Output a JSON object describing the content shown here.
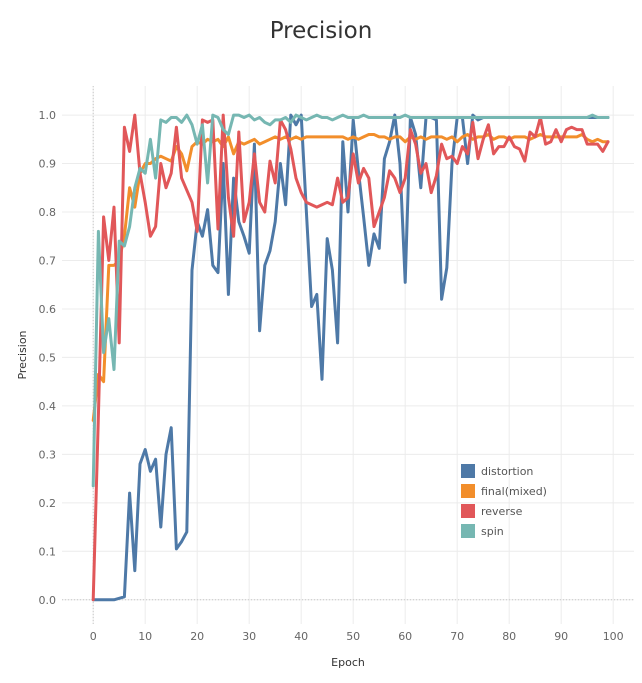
{
  "chart_data": {
    "type": "line",
    "title": "Precision",
    "xlabel": "Epoch",
    "ylabel": "Precision",
    "xlim": [
      -6,
      104
    ],
    "ylim": [
      -0.05,
      1.06
    ],
    "xticks": [
      0,
      10,
      20,
      30,
      40,
      50,
      60,
      70,
      80,
      90,
      100
    ],
    "yticks": [
      0.0,
      0.1,
      0.2,
      0.3,
      0.4,
      0.5,
      0.6,
      0.7,
      0.8,
      0.9,
      1.0
    ],
    "ytick_labels": [
      "0.0",
      "0.1",
      "0.2",
      "0.3",
      "0.4",
      "0.5",
      "0.6",
      "0.7",
      "0.8",
      "0.9",
      "1.0"
    ],
    "grid": true,
    "legend_position": "bottom-right",
    "series": [
      {
        "name": "distortion",
        "color": "#4e79a7",
        "values": [
          0.0,
          0.0,
          0.0,
          0.0,
          0.0,
          0.003,
          0.006,
          0.22,
          0.06,
          0.28,
          0.31,
          0.265,
          0.29,
          0.15,
          0.3,
          0.355,
          0.105,
          0.12,
          0.14,
          0.68,
          0.78,
          0.75,
          0.805,
          0.69,
          0.675,
          0.9,
          0.63,
          0.87,
          0.78,
          0.75,
          0.715,
          0.94,
          0.555,
          0.69,
          0.72,
          0.78,
          0.9,
          0.815,
          1.0,
          0.98,
          1.0,
          0.8,
          0.605,
          0.63,
          0.455,
          0.745,
          0.68,
          0.53,
          0.945,
          0.8,
          0.99,
          0.885,
          0.79,
          0.69,
          0.755,
          0.725,
          0.91,
          0.945,
          1.0,
          0.9,
          0.655,
          0.995,
          0.96,
          0.85,
          0.995,
          0.995,
          0.99,
          0.62,
          0.685,
          0.9,
          0.995,
          0.995,
          0.9,
          1.0,
          0.99,
          0.995,
          0.995,
          0.995,
          0.995,
          0.995,
          0.995,
          0.995,
          0.995,
          0.995,
          0.995,
          0.995,
          0.995,
          0.995,
          0.995,
          0.995,
          0.995,
          0.995,
          0.995,
          0.995,
          0.995,
          0.995,
          0.995,
          0.995,
          0.995,
          0.995
        ]
      },
      {
        "name": "final(mixed)",
        "color": "#f28e2b",
        "values": [
          0.37,
          0.465,
          0.45,
          0.69,
          0.69,
          0.7,
          0.75,
          0.85,
          0.81,
          0.88,
          0.9,
          0.9,
          0.91,
          0.915,
          0.91,
          0.905,
          0.935,
          0.92,
          0.885,
          0.935,
          0.945,
          0.94,
          0.95,
          0.945,
          0.95,
          0.935,
          0.955,
          0.92,
          0.945,
          0.94,
          0.945,
          0.95,
          0.94,
          0.945,
          0.95,
          0.955,
          0.95,
          0.955,
          0.95,
          0.955,
          0.95,
          0.955,
          0.955,
          0.955,
          0.955,
          0.955,
          0.955,
          0.955,
          0.955,
          0.95,
          0.955,
          0.95,
          0.955,
          0.96,
          0.96,
          0.955,
          0.955,
          0.95,
          0.955,
          0.955,
          0.945,
          0.955,
          0.95,
          0.955,
          0.95,
          0.955,
          0.955,
          0.955,
          0.95,
          0.955,
          0.945,
          0.955,
          0.96,
          0.95,
          0.955,
          0.955,
          0.96,
          0.95,
          0.955,
          0.955,
          0.95,
          0.955,
          0.955,
          0.955,
          0.95,
          0.955,
          0.96,
          0.955,
          0.955,
          0.955,
          0.955,
          0.955,
          0.955,
          0.955,
          0.96,
          0.95,
          0.945,
          0.95,
          0.945,
          0.945
        ]
      },
      {
        "name": "reverse",
        "color": "#e15759",
        "values": [
          0.0,
          0.38,
          0.79,
          0.7,
          0.81,
          0.53,
          0.975,
          0.925,
          1.0,
          0.88,
          0.82,
          0.75,
          0.77,
          0.9,
          0.85,
          0.88,
          0.975,
          0.87,
          0.845,
          0.82,
          0.76,
          0.99,
          0.985,
          0.99,
          0.765,
          1.0,
          0.83,
          0.75,
          0.965,
          0.78,
          0.82,
          0.92,
          0.82,
          0.8,
          0.905,
          0.86,
          0.99,
          0.97,
          0.93,
          0.87,
          0.84,
          0.82,
          0.815,
          0.81,
          0.815,
          0.82,
          0.815,
          0.87,
          0.82,
          0.83,
          0.92,
          0.86,
          0.89,
          0.87,
          0.77,
          0.8,
          0.83,
          0.885,
          0.87,
          0.84,
          0.87,
          0.97,
          0.94,
          0.88,
          0.9,
          0.84,
          0.875,
          0.94,
          0.91,
          0.915,
          0.9,
          0.935,
          0.92,
          0.985,
          0.91,
          0.95,
          0.98,
          0.92,
          0.935,
          0.935,
          0.955,
          0.935,
          0.93,
          0.905,
          0.965,
          0.955,
          0.995,
          0.94,
          0.945,
          0.97,
          0.945,
          0.97,
          0.975,
          0.97,
          0.97,
          0.94,
          0.94,
          0.94,
          0.925,
          0.945
        ]
      },
      {
        "name": "spin",
        "color": "#76b7b2",
        "values": [
          0.235,
          0.76,
          0.51,
          0.58,
          0.475,
          0.74,
          0.73,
          0.77,
          0.85,
          0.89,
          0.88,
          0.95,
          0.87,
          0.99,
          0.985,
          0.995,
          0.995,
          0.985,
          1.0,
          0.98,
          0.94,
          0.98,
          0.86,
          1.0,
          0.995,
          0.97,
          0.96,
          1.0,
          1.0,
          0.995,
          1.0,
          0.99,
          0.995,
          0.985,
          0.98,
          0.99,
          0.99,
          0.995,
          0.985,
          1.0,
          0.995,
          0.99,
          0.995,
          1.0,
          0.995,
          0.995,
          0.99,
          0.995,
          1.0,
          0.995,
          0.995,
          0.995,
          1.0,
          0.995,
          0.995,
          0.995,
          0.995,
          0.995,
          0.995,
          0.995,
          1.0,
          0.995,
          0.995,
          0.995,
          0.995,
          0.995,
          0.995,
          0.995,
          0.995,
          0.995,
          0.995,
          0.995,
          0.995,
          0.995,
          0.995,
          0.995,
          0.995,
          0.995,
          0.995,
          0.995,
          0.995,
          0.995,
          0.995,
          0.995,
          0.995,
          0.995,
          0.995,
          0.995,
          0.995,
          0.995,
          0.995,
          0.995,
          0.995,
          0.995,
          0.995,
          0.995,
          1.0,
          0.995,
          0.995,
          0.995
        ]
      }
    ]
  }
}
